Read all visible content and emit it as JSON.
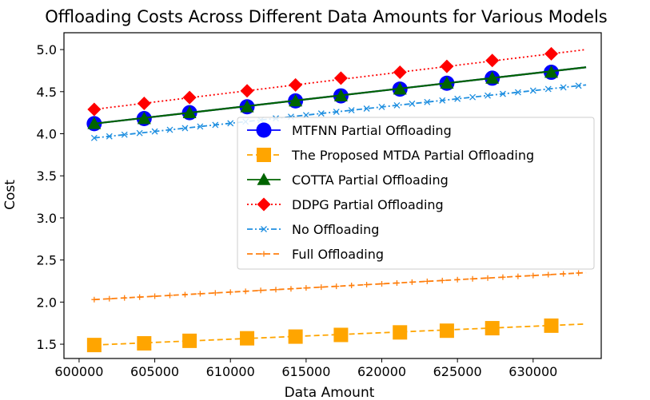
{
  "chart_data": {
    "type": "line",
    "title": "Offloading Costs Across Different Data Amounts for Various Models",
    "xlabel": "Data Amount",
    "ylabel": "Cost",
    "xlim": [
      599000,
      634500
    ],
    "ylim": [
      1.33,
      5.2
    ],
    "xticks": [
      600000,
      605000,
      610000,
      615000,
      620000,
      625000,
      630000
    ],
    "xtick_labels": [
      "600000",
      "605000",
      "610000",
      "615000",
      "620000",
      "625000",
      "630000"
    ],
    "yticks": [
      1.5,
      2.0,
      2.5,
      3.0,
      3.5,
      4.0,
      4.5,
      5.0
    ],
    "ytick_labels": [
      "1.5",
      "2.0",
      "2.5",
      "3.0",
      "3.5",
      "4.0",
      "4.5",
      "5.0"
    ],
    "grid": false,
    "legend_position": "center-right",
    "series": [
      {
        "name": "MTFNN Partial Offloading",
        "color": "#0000ff",
        "line_style": "solid",
        "marker": "circle",
        "line_range": [
          [
            601000,
            4.12
          ],
          [
            633500,
            4.79
          ]
        ],
        "marker_points": [
          [
            601000,
            4.12
          ],
          [
            604300,
            4.18
          ],
          [
            607300,
            4.25
          ],
          [
            611100,
            4.32
          ],
          [
            614300,
            4.39
          ],
          [
            617300,
            4.45
          ],
          [
            621200,
            4.53
          ],
          [
            624300,
            4.6
          ],
          [
            627300,
            4.66
          ],
          [
            631200,
            4.73
          ]
        ]
      },
      {
        "name": "The Proposed MTDA Partial Offloading",
        "color": "#ffa500",
        "line_style": "dashed",
        "marker": "square",
        "line_range": [
          [
            601000,
            1.49
          ],
          [
            633500,
            1.74
          ]
        ],
        "marker_points": [
          [
            601000,
            1.49
          ],
          [
            604300,
            1.51
          ],
          [
            607300,
            1.54
          ],
          [
            611100,
            1.57
          ],
          [
            614300,
            1.59
          ],
          [
            617300,
            1.61
          ],
          [
            621200,
            1.64
          ],
          [
            624300,
            1.66
          ],
          [
            627300,
            1.69
          ],
          [
            631200,
            1.72
          ]
        ]
      },
      {
        "name": "COTTA Partial Offloading",
        "color": "#006400",
        "line_style": "solid",
        "marker": "triangle",
        "line_range": [
          [
            601000,
            4.12
          ],
          [
            633500,
            4.79
          ]
        ],
        "marker_points": [
          [
            601000,
            4.12
          ],
          [
            604300,
            4.18
          ],
          [
            607300,
            4.25
          ],
          [
            611100,
            4.32
          ],
          [
            614300,
            4.39
          ],
          [
            617300,
            4.45
          ],
          [
            621200,
            4.53
          ],
          [
            624300,
            4.6
          ],
          [
            627300,
            4.66
          ],
          [
            631200,
            4.73
          ]
        ]
      },
      {
        "name": "DDPG Partial Offloading",
        "color": "#ff0000",
        "line_style": "dotted",
        "marker": "diamond",
        "line_range": [
          [
            601000,
            4.29
          ],
          [
            633500,
            5.0
          ]
        ],
        "marker_points": [
          [
            601000,
            4.29
          ],
          [
            604300,
            4.36
          ],
          [
            607300,
            4.43
          ],
          [
            611100,
            4.51
          ],
          [
            614300,
            4.58
          ],
          [
            617300,
            4.66
          ],
          [
            621200,
            4.73
          ],
          [
            624300,
            4.8
          ],
          [
            627300,
            4.87
          ],
          [
            631200,
            4.95
          ]
        ]
      },
      {
        "name": "No Offloading",
        "color": "#1f8fe0",
        "line_style": "dashdot",
        "marker": "x",
        "line_range": [
          [
            601000,
            3.95
          ],
          [
            633500,
            4.58
          ]
        ],
        "marker_spacing": 1000,
        "marker_range": [
          601000,
          633500
        ]
      },
      {
        "name": "Full Offloading",
        "color": "#ff7f0e",
        "line_style": "dashed",
        "marker": "plus",
        "line_range": [
          [
            601000,
            2.03
          ],
          [
            633500,
            2.35
          ]
        ],
        "marker_spacing": 1000,
        "marker_range": [
          601000,
          633500
        ]
      }
    ]
  }
}
